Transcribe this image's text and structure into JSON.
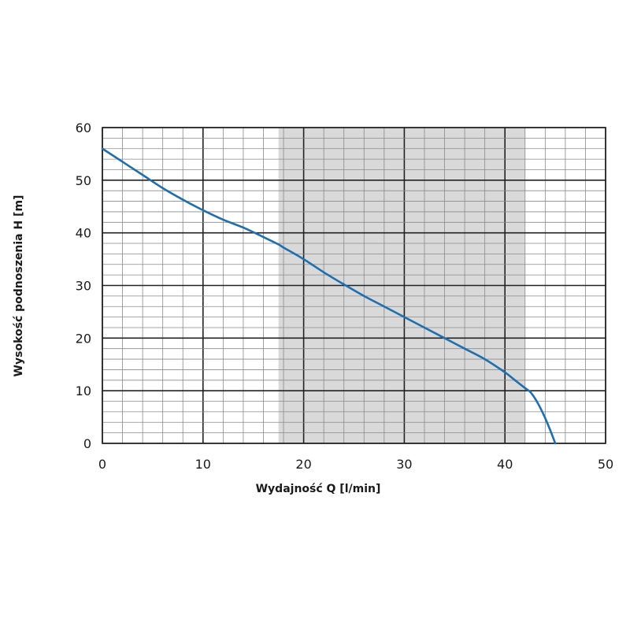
{
  "chart_data": {
    "type": "line",
    "xlabel": "Wydajność Q [l/min]",
    "ylabel": "Wysokość podnoszenia H [m]",
    "xlim": [
      0,
      50
    ],
    "ylim": [
      0,
      60
    ],
    "x_ticks": [
      "0",
      "10",
      "20",
      "30",
      "40",
      "50"
    ],
    "y_ticks": [
      "0",
      "10",
      "20",
      "30",
      "40",
      "50",
      "60"
    ],
    "grid": true,
    "shaded_range_x": [
      17.5,
      42
    ],
    "colors": {
      "line": "#1f6fae",
      "shade": "#d9d9d9",
      "grid": "#555555"
    },
    "series": [
      {
        "x": [
          0,
          2,
          4,
          6,
          8,
          10,
          12,
          14,
          16,
          17.5,
          18,
          20,
          22,
          24,
          26,
          28,
          30,
          32,
          34,
          36,
          38,
          40,
          41,
          42,
          42.5,
          43,
          43.5,
          44,
          44.5,
          45
        ],
        "y": [
          56,
          53.5,
          51,
          48.5,
          46.3,
          44.3,
          42.5,
          41,
          39.2,
          37.8,
          37.2,
          35,
          32.5,
          30.2,
          28,
          26,
          24,
          22,
          20,
          18,
          16,
          13.5,
          12,
          10.5,
          9.8,
          8.5,
          6.8,
          4.8,
          2.5,
          0
        ]
      }
    ]
  }
}
